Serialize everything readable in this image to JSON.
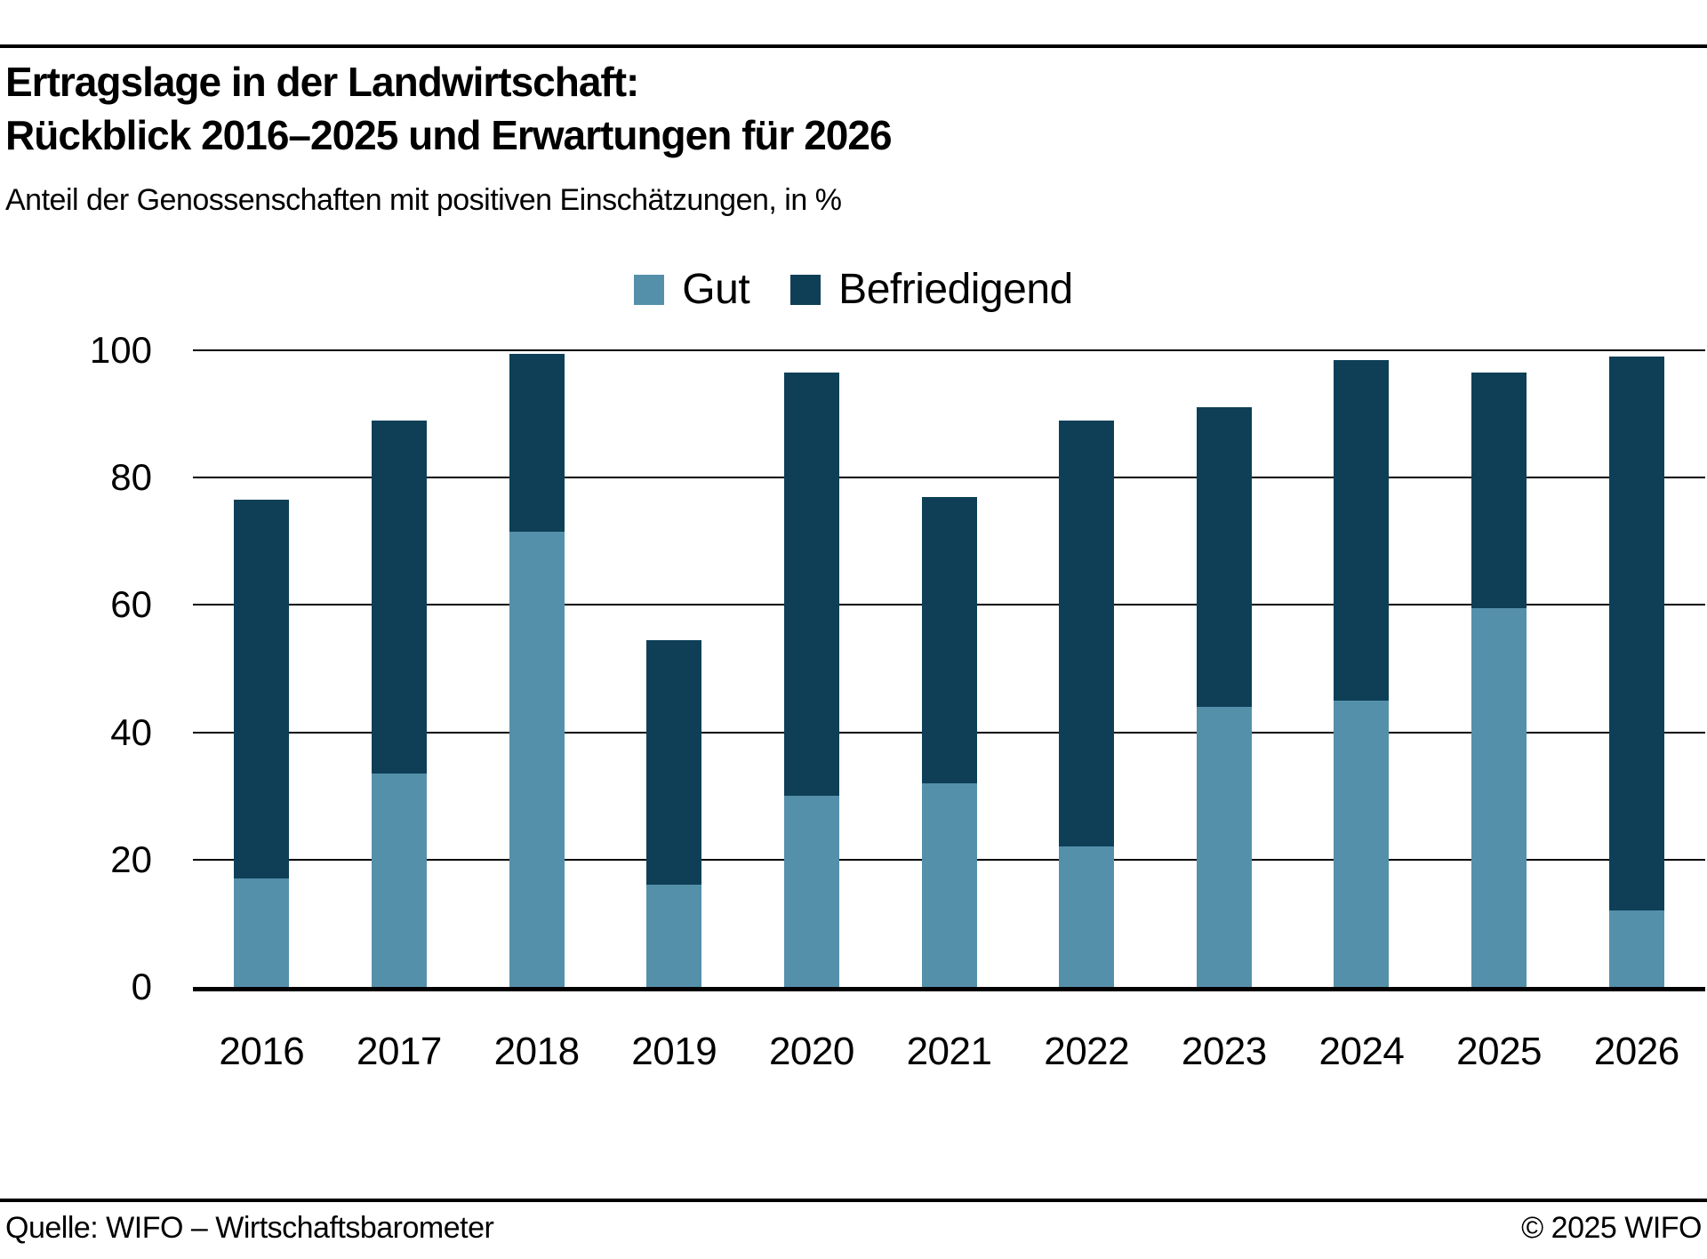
{
  "header": {
    "title_line1": "Ertragslage in der Landwirtschaft:",
    "title_line2": "Rückblick 2016–2025 und Erwartungen für 2026",
    "subtitle": "Anteil der Genossenschaften mit positiven Einschätzungen, in %"
  },
  "footer": {
    "source": "Quelle: WIFO – Wirtschaftsbarometer",
    "copyright": "© 2025 WIFO"
  },
  "colors": {
    "gut": "#5590ab",
    "befriedigend": "#0e3f57"
  },
  "chart_data": {
    "type": "bar",
    "stacked": true,
    "title": "Ertragslage in der Landwirtschaft: Rückblick 2016–2025 und Erwartungen für 2026",
    "subtitle": "Anteil der Genossenschaften mit positiven Einschätzungen, in %",
    "categories": [
      "2016",
      "2017",
      "2018",
      "2019",
      "2020",
      "2021",
      "2022",
      "2023",
      "2024",
      "2025",
      "2026"
    ],
    "series": [
      {
        "name": "Gut",
        "color_key": "gut",
        "values": [
          17,
          33.5,
          71.5,
          16,
          30,
          32,
          22,
          44,
          45,
          59.5,
          12
        ]
      },
      {
        "name": "Befriedigend",
        "color_key": "befriedigend",
        "values": [
          59.5,
          55.5,
          28,
          38.5,
          66.5,
          45,
          67,
          47,
          53.5,
          37,
          87
        ]
      }
    ],
    "totals": [
      76.5,
      89,
      99.5,
      54.5,
      96.5,
      77,
      89,
      91,
      98.5,
      96.5,
      99
    ],
    "xlabel": "",
    "ylabel": "",
    "ylim": [
      0,
      100
    ],
    "yticks": [
      0,
      20,
      40,
      60,
      80,
      100
    ],
    "grid": "horizontal",
    "legend_position": "top-center"
  }
}
